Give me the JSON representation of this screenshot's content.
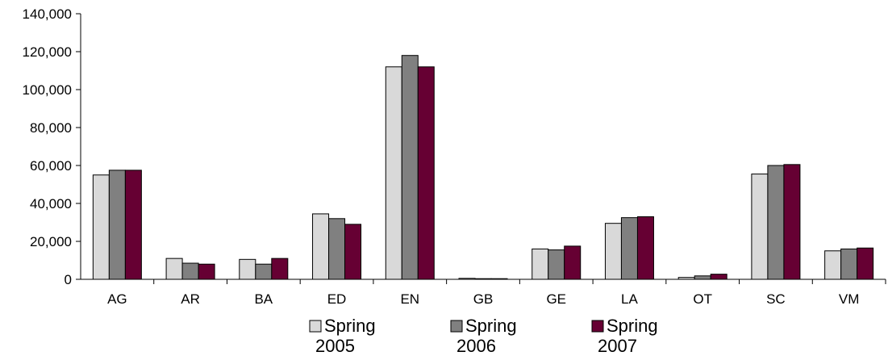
{
  "chart_data": {
    "type": "bar",
    "title": "",
    "xlabel": "",
    "ylabel": "",
    "categories": [
      "AG",
      "AR",
      "BA",
      "ED",
      "EN",
      "GB",
      "GE",
      "LA",
      "OT",
      "SC",
      "VM"
    ],
    "series": [
      {
        "name": "Spring 2005",
        "color": "#d9d9d9",
        "values": [
          55000,
          11000,
          10500,
          34500,
          112000,
          500,
          16000,
          29500,
          1000,
          55500,
          15000
        ]
      },
      {
        "name": "Spring 2006",
        "color": "#808080",
        "values": [
          57500,
          8500,
          8000,
          32000,
          118000,
          300,
          15500,
          32500,
          1800,
          60000,
          16000
        ]
      },
      {
        "name": "Spring 2007",
        "color": "#660033",
        "values": [
          57500,
          8000,
          11000,
          29000,
          112000,
          300,
          17500,
          33000,
          2700,
          60500,
          16500
        ]
      }
    ],
    "ylim": [
      0,
      140000
    ],
    "yticks": [
      0,
      20000,
      40000,
      60000,
      80000,
      100000,
      120000,
      140000
    ],
    "ytick_labels": [
      "0",
      "20,000",
      "40,000",
      "60,000",
      "80,000",
      "100,000",
      "120,000",
      "140,000"
    ],
    "grid": false,
    "legend": {
      "position": "bottom",
      "entries": [
        [
          "Spring",
          "2005"
        ],
        [
          "Spring",
          "2006"
        ],
        [
          "Spring",
          "2007"
        ]
      ]
    }
  }
}
